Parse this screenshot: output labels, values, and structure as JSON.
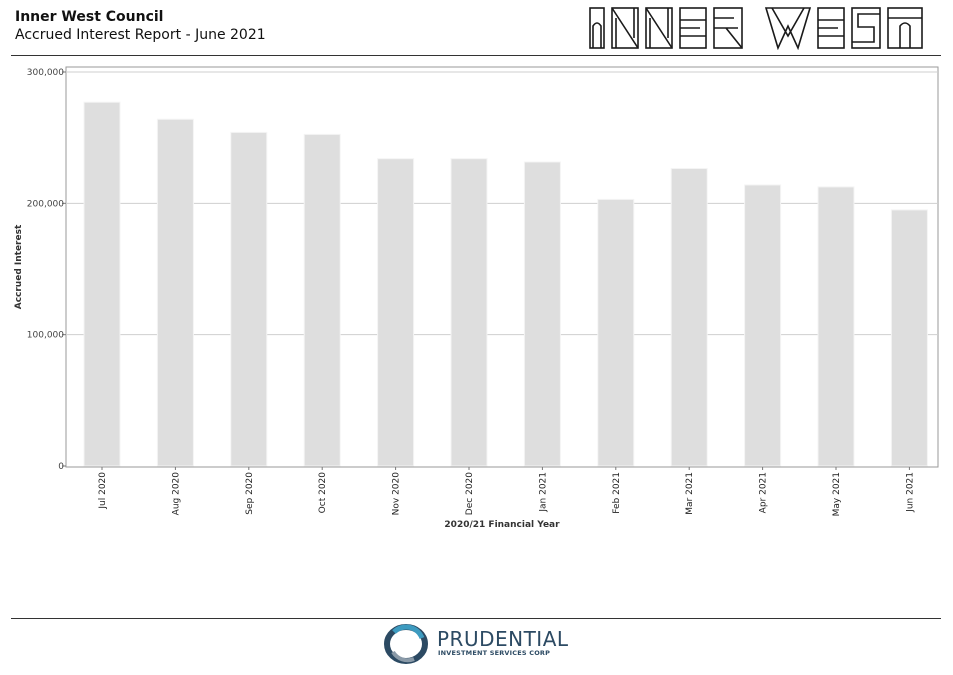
{
  "header": {
    "org": "Inner West Council",
    "subtitle": "Accrued Interest Report - June 2021",
    "logo_name": "inner-west-logo",
    "logo_text": "INNER WEST"
  },
  "footer": {
    "brand": "PRUDENTIAL",
    "tagline": "INVESTMENT SERVICES CORP"
  },
  "chart_data": {
    "type": "bar",
    "title": "",
    "xlabel": "2020/21 Financial Year",
    "ylabel": "Accrued Interest",
    "categories": [
      "Jul 2020",
      "Aug 2020",
      "Sep 2020",
      "Oct 2020",
      "Nov 2020",
      "Dec 2020",
      "Jan 2021",
      "Feb 2021",
      "Mar 2021",
      "Apr 2021",
      "May 2021",
      "Jun 2021"
    ],
    "values": [
      277000,
      264000,
      254000,
      252500,
      234000,
      234000,
      231500,
      203000,
      226500,
      214000,
      212500,
      195000
    ],
    "ylim": [
      0,
      300000
    ],
    "yticks": [
      0,
      100000,
      200000,
      300000
    ],
    "ytick_labels": [
      "0",
      "100,000",
      "200,000",
      "300,000"
    ],
    "grid": true,
    "bar_color": "#dedede",
    "gridline_color": "#cfcfcf"
  }
}
